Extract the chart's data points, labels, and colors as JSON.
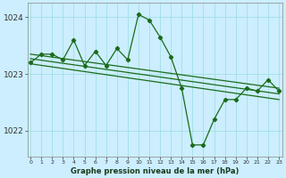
{
  "title": "Graphe pression niveau de la mer (hPa)",
  "background_color": "#cceeff",
  "grid_color": "#99dddd",
  "line_color": "#1a6b1a",
  "hours": [
    0,
    1,
    2,
    3,
    4,
    5,
    6,
    7,
    8,
    9,
    10,
    11,
    12,
    13,
    14,
    15,
    16,
    17,
    18,
    19,
    20,
    21,
    22,
    23
  ],
  "pressure_main": [
    1023.2,
    1023.35,
    1023.35,
    1023.25,
    1023.6,
    1023.15,
    1023.4,
    1023.15,
    1023.45,
    1023.25,
    1024.05,
    1023.95,
    1023.65,
    1023.3,
    1022.75,
    1021.75,
    1021.75,
    1022.2,
    1022.55,
    1022.55,
    1022.75,
    1022.7,
    1022.9,
    1022.7
  ],
  "trend_lines": [
    [
      1023.35,
      1022.75
    ],
    [
      1023.27,
      1022.65
    ],
    [
      1023.18,
      1022.55
    ]
  ],
  "ylim_min": 1021.55,
  "ylim_max": 1024.25,
  "yticks": [
    1022,
    1023,
    1024
  ],
  "xlim_min": -0.3,
  "xlim_max": 23.3,
  "x_labels": [
    "0",
    "1",
    "2",
    "3",
    "4",
    "5",
    "6",
    "7",
    "8",
    "9",
    "10",
    "11",
    "12",
    "13",
    "14",
    "15",
    "16",
    "17",
    "18",
    "19",
    "20",
    "21",
    "22",
    "23"
  ]
}
